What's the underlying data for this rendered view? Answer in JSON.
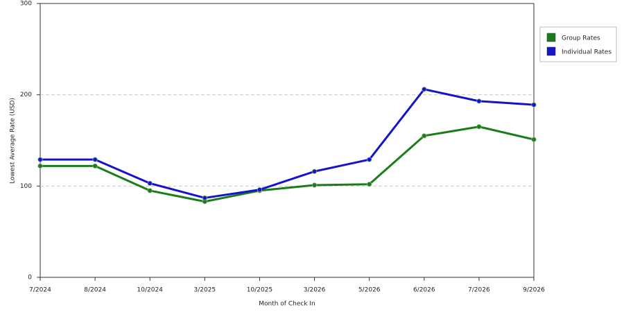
{
  "chart_data": {
    "type": "line",
    "x_label": "Month of Check In",
    "y_label": "Lowest Average Rate (USD)",
    "categories": [
      "7/2024",
      "8/2024",
      "10/2024",
      "3/2025",
      "10/2025",
      "3/2026",
      "5/2026",
      "6/2026",
      "7/2026",
      "9/2026"
    ],
    "series": [
      {
        "name": "Group Rates",
        "color": "#1a7d1a",
        "values": [
          122,
          122,
          95,
          83,
          95,
          101,
          102,
          155,
          165,
          151
        ]
      },
      {
        "name": "Individual Rates",
        "color": "#1515c8",
        "values": [
          129,
          129,
          103,
          87,
          96,
          116,
          129,
          206,
          193,
          189
        ]
      }
    ],
    "ylim": [
      0,
      300
    ],
    "yticks": [
      0,
      100,
      200,
      300
    ],
    "grid": true,
    "legend": "right"
  }
}
